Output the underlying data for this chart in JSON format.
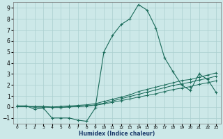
{
  "xlabel": "Humidex (Indice chaleur)",
  "background_color": "#cce8e8",
  "grid_color": "#aacfcf",
  "line_color": "#1a6b5a",
  "xlim": [
    -0.5,
    23.5
  ],
  "ylim": [
    -1.5,
    9.5
  ],
  "xticks": [
    0,
    1,
    2,
    3,
    4,
    5,
    6,
    7,
    8,
    9,
    10,
    11,
    12,
    13,
    14,
    15,
    16,
    17,
    18,
    19,
    20,
    21,
    22,
    23
  ],
  "yticks": [
    -1,
    0,
    1,
    2,
    3,
    4,
    5,
    6,
    7,
    8,
    9
  ],
  "series": [
    [
      0.1,
      0.1,
      -0.2,
      -0.1,
      -1.0,
      -1.0,
      -1.0,
      -1.2,
      -1.3,
      -0.1,
      5.0,
      6.5,
      7.5,
      8.0,
      9.3,
      8.8,
      7.2,
      4.5,
      3.2,
      2.0,
      1.5,
      3.0,
      2.5,
      1.3
    ],
    [
      0.05,
      0.05,
      0.05,
      0.05,
      0.0,
      0.05,
      0.1,
      0.15,
      0.2,
      0.3,
      0.5,
      0.7,
      0.9,
      1.1,
      1.4,
      1.6,
      1.8,
      2.0,
      2.2,
      2.4,
      2.5,
      2.7,
      2.9,
      3.1
    ],
    [
      0.05,
      0.05,
      0.0,
      0.0,
      -0.05,
      -0.05,
      0.0,
      0.05,
      0.1,
      0.2,
      0.35,
      0.55,
      0.75,
      0.95,
      1.15,
      1.35,
      1.55,
      1.75,
      1.95,
      2.1,
      2.25,
      2.45,
      2.6,
      2.8
    ],
    [
      0.05,
      0.05,
      0.0,
      0.0,
      -0.02,
      -0.02,
      0.02,
      0.05,
      0.08,
      0.15,
      0.28,
      0.42,
      0.58,
      0.73,
      0.9,
      1.05,
      1.2,
      1.4,
      1.58,
      1.72,
      1.85,
      2.05,
      2.2,
      2.38
    ]
  ]
}
